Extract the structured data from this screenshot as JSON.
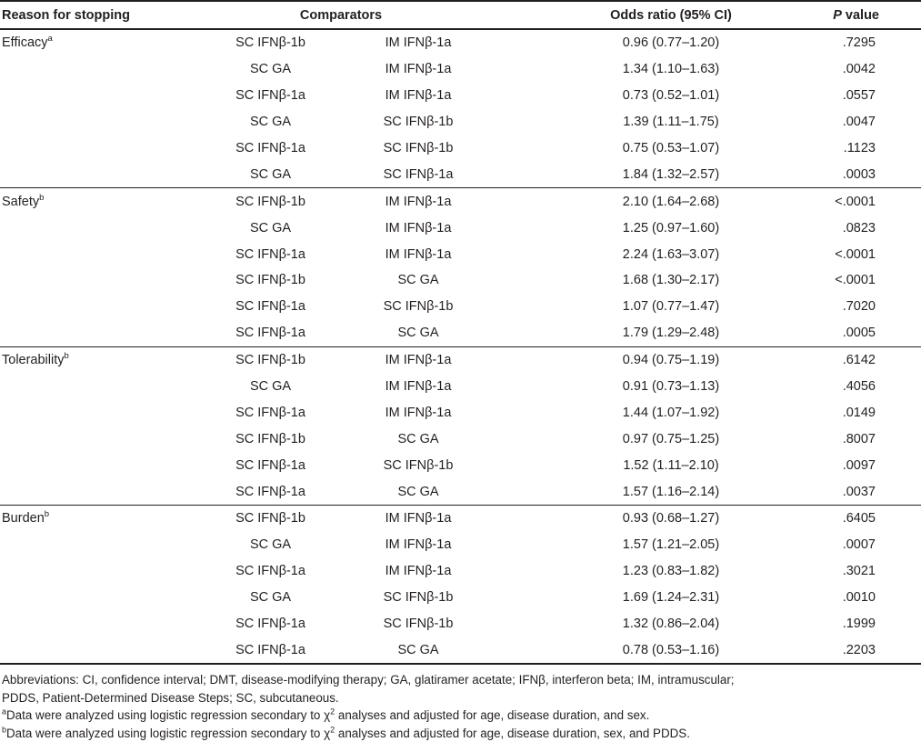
{
  "colors": {
    "text": "#231f20",
    "background": "#ffffff",
    "rule": "#231f20"
  },
  "table": {
    "headers": {
      "reason": "Reason for stopping",
      "comparators": "Comparators",
      "odds_ratio": "Odds ratio (95% CI)",
      "p_italic": "P",
      "p_rest": " value"
    },
    "sections": [
      {
        "reason": "Efficacy",
        "footnote_marker": "a",
        "rows": [
          {
            "comparator_1": "SC IFNβ-1b",
            "comparator_2": "IM IFNβ-1a",
            "odds_ratio": "0.96 (0.77–1.20)",
            "p_value": ".7295"
          },
          {
            "comparator_1": "SC GA",
            "comparator_2": "IM IFNβ-1a",
            "odds_ratio": "1.34 (1.10–1.63)",
            "p_value": ".0042"
          },
          {
            "comparator_1": "SC IFNβ-1a",
            "comparator_2": "IM IFNβ-1a",
            "odds_ratio": "0.73 (0.52–1.01)",
            "p_value": ".0557"
          },
          {
            "comparator_1": "SC GA",
            "comparator_2": "SC IFNβ-1b",
            "odds_ratio": "1.39 (1.11–1.75)",
            "p_value": ".0047"
          },
          {
            "comparator_1": "SC IFNβ-1a",
            "comparator_2": "SC IFNβ-1b",
            "odds_ratio": "0.75 (0.53–1.07)",
            "p_value": ".1123"
          },
          {
            "comparator_1": "SC GA",
            "comparator_2": "SC IFNβ-1a",
            "odds_ratio": "1.84 (1.32–2.57)",
            "p_value": ".0003"
          }
        ]
      },
      {
        "reason": "Safety",
        "footnote_marker": "b",
        "rows": [
          {
            "comparator_1": "SC IFNβ-1b",
            "comparator_2": "IM IFNβ-1a",
            "odds_ratio": "2.10 (1.64–2.68)",
            "p_value": "<.0001"
          },
          {
            "comparator_1": "SC GA",
            "comparator_2": "IM IFNβ-1a",
            "odds_ratio": "1.25 (0.97–1.60)",
            "p_value": ".0823"
          },
          {
            "comparator_1": "SC IFNβ-1a",
            "comparator_2": "IM IFNβ-1a",
            "odds_ratio": "2.24 (1.63–3.07)",
            "p_value": "<.0001"
          },
          {
            "comparator_1": "SC IFNβ-1b",
            "comparator_2": "SC GA",
            "odds_ratio": "1.68 (1.30–2.17)",
            "p_value": "<.0001"
          },
          {
            "comparator_1": "SC IFNβ-1a",
            "comparator_2": "SC IFNβ-1b",
            "odds_ratio": "1.07 (0.77–1.47)",
            "p_value": ".7020"
          },
          {
            "comparator_1": "SC IFNβ-1a",
            "comparator_2": "SC GA",
            "odds_ratio": "1.79 (1.29–2.48)",
            "p_value": ".0005"
          }
        ]
      },
      {
        "reason": "Tolerability",
        "footnote_marker": "b",
        "rows": [
          {
            "comparator_1": "SC IFNβ-1b",
            "comparator_2": "IM IFNβ-1a",
            "odds_ratio": "0.94 (0.75–1.19)",
            "p_value": ".6142"
          },
          {
            "comparator_1": "SC GA",
            "comparator_2": "IM IFNβ-1a",
            "odds_ratio": "0.91 (0.73–1.13)",
            "p_value": ".4056"
          },
          {
            "comparator_1": "SC IFNβ-1a",
            "comparator_2": "IM IFNβ-1a",
            "odds_ratio": "1.44 (1.07–1.92)",
            "p_value": ".0149"
          },
          {
            "comparator_1": "SC IFNβ-1b",
            "comparator_2": "SC GA",
            "odds_ratio": "0.97 (0.75–1.25)",
            "p_value": ".8007"
          },
          {
            "comparator_1": "SC IFNβ-1a",
            "comparator_2": "SC IFNβ-1b",
            "odds_ratio": "1.52 (1.11–2.10)",
            "p_value": ".0097"
          },
          {
            "comparator_1": "SC IFNβ-1a",
            "comparator_2": "SC GA",
            "odds_ratio": "1.57 (1.16–2.14)",
            "p_value": ".0037"
          }
        ]
      },
      {
        "reason": "Burden",
        "footnote_marker": "b",
        "rows": [
          {
            "comparator_1": "SC IFNβ-1b",
            "comparator_2": "IM IFNβ-1a",
            "odds_ratio": "0.93 (0.68–1.27)",
            "p_value": ".6405"
          },
          {
            "comparator_1": "SC GA",
            "comparator_2": "IM IFNβ-1a",
            "odds_ratio": "1.57 (1.21–2.05)",
            "p_value": ".0007"
          },
          {
            "comparator_1": "SC IFNβ-1a",
            "comparator_2": "IM IFNβ-1a",
            "odds_ratio": "1.23 (0.83–1.82)",
            "p_value": ".3021"
          },
          {
            "comparator_1": "SC GA",
            "comparator_2": "SC IFNβ-1b",
            "odds_ratio": "1.69 (1.24–2.31)",
            "p_value": ".0010"
          },
          {
            "comparator_1": "SC IFNβ-1a",
            "comparator_2": "SC IFNβ-1b",
            "odds_ratio": "1.32 (0.86–2.04)",
            "p_value": ".1999"
          },
          {
            "comparator_1": "SC IFNβ-1a",
            "comparator_2": "SC GA",
            "odds_ratio": "0.78 (0.53–1.16)",
            "p_value": ".2203"
          }
        ]
      }
    ]
  },
  "footnotes": {
    "abbreviations_line1": "Abbreviations: CI, confidence interval; DMT, disease-modifying therapy; GA, glatiramer acetate; IFNβ, interferon beta; IM, intramuscular;",
    "abbreviations_line2": "PDDS, Patient-Determined Disease Steps; SC, subcutaneous.",
    "a": {
      "marker": "a",
      "text_pre": "Data were analyzed using logistic regression secondary to χ",
      "sup": "2",
      "text_post": " analyses and adjusted for age, disease duration, and sex."
    },
    "b": {
      "marker": "b",
      "text_pre": "Data were analyzed using logistic regression secondary to χ",
      "sup": "2",
      "text_post": " analyses and adjusted for age, disease duration, sex, and PDDS."
    }
  }
}
